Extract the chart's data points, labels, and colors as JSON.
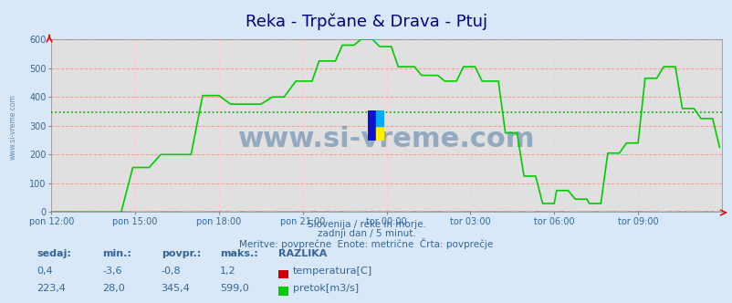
{
  "title": "Reka - Trpčane & Drava - Ptuj",
  "bg_color": "#d8e8f8",
  "grid_color_h": "#ff9999",
  "grid_color_v": "#ffcccc",
  "xlabel_times": [
    "pon 12:00",
    "pon 15:00",
    "pon 18:00",
    "pon 21:00",
    "tor 00:00",
    "tor 03:00",
    "tor 06:00",
    "tor 09:00"
  ],
  "xlim": [
    0,
    288
  ],
  "ylim": [
    0,
    600
  ],
  "yticks": [
    0,
    100,
    200,
    300,
    400,
    500,
    600
  ],
  "avg_line_value": 345.4,
  "avg_line_color": "#00aa00",
  "temp_line_color": "#cc0000",
  "flow_line_color": "#00cc00",
  "subtitle1": "Slovenija / reke in morje.",
  "subtitle2": "zadnji dan / 5 minut.",
  "subtitle3": "Meritve: povprečne  Enote: metrične  Črta: povprečje",
  "text_color": "#336699",
  "watermark": "www.si-vreme.com",
  "footer_labels": [
    "sedaj:",
    "min.:",
    "povpr.:",
    "maks.:",
    "RAZLIKA"
  ],
  "footer_row1": [
    "0,4",
    "-3,6",
    "-0,8",
    "1,2"
  ],
  "footer_row2": [
    "223,4",
    "28,0",
    "345,4",
    "599,0"
  ],
  "legend1": "temperatura[C]",
  "legend2": "pretok[m3/s]",
  "legend_color1": "#cc0000",
  "legend_color2": "#00cc00",
  "num_points": 288,
  "xtick_positions": [
    0,
    36,
    72,
    108,
    144,
    180,
    216,
    252
  ],
  "title_color": "#000080",
  "title_fontsize": 13
}
